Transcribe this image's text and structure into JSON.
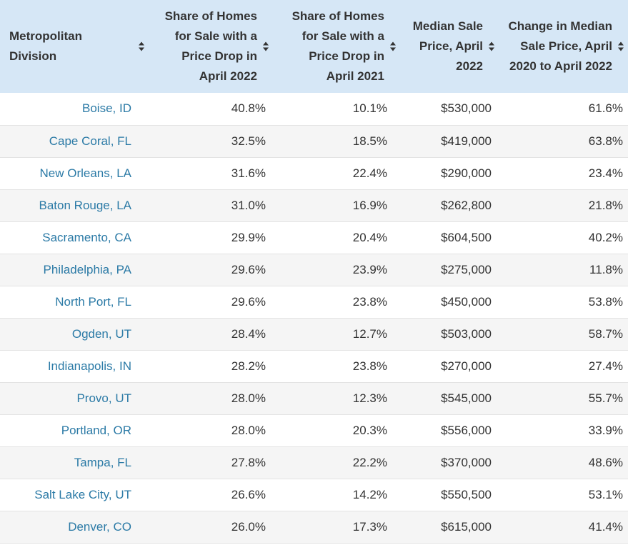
{
  "table": {
    "headers": [
      "Metropolitan Division",
      "Share of Homes for Sale with a Price Drop in April 2022",
      "Share of Homes for Sale with a Price Drop in April 2021",
      "Median Sale Price, April 2022",
      "Change in Median Sale Price, April 2020 to April 2022"
    ],
    "rows": [
      [
        "Boise, ID",
        "40.8%",
        "10.1%",
        "$530,000",
        "61.6%"
      ],
      [
        "Cape Coral, FL",
        "32.5%",
        "18.5%",
        "$419,000",
        "63.8%"
      ],
      [
        "New Orleans, LA",
        "31.6%",
        "22.4%",
        "$290,000",
        "23.4%"
      ],
      [
        "Baton Rouge, LA",
        "31.0%",
        "16.9%",
        "$262,800",
        "21.8%"
      ],
      [
        "Sacramento, CA",
        "29.9%",
        "20.4%",
        "$604,500",
        "40.2%"
      ],
      [
        "Philadelphia, PA",
        "29.6%",
        "23.9%",
        "$275,000",
        "11.8%"
      ],
      [
        "North Port, FL",
        "29.6%",
        "23.8%",
        "$450,000",
        "53.8%"
      ],
      [
        "Ogden, UT",
        "28.4%",
        "12.7%",
        "$503,000",
        "58.7%"
      ],
      [
        "Indianapolis, IN",
        "28.2%",
        "23.8%",
        "$270,000",
        "27.4%"
      ],
      [
        "Provo, UT",
        "28.0%",
        "12.3%",
        "$545,000",
        "55.7%"
      ],
      [
        "Portland, OR",
        "28.0%",
        "20.3%",
        "$556,000",
        "33.9%"
      ],
      [
        "Tampa, FL",
        "27.8%",
        "22.2%",
        "$370,000",
        "48.6%"
      ],
      [
        "Salt Lake City, UT",
        "26.6%",
        "14.2%",
        "$550,500",
        "53.1%"
      ],
      [
        "Denver, CO",
        "26.0%",
        "17.3%",
        "$615,000",
        "41.4%"
      ]
    ]
  },
  "colors": {
    "header_bg": "#d6e7f6",
    "link_text": "#2b7aa6",
    "row_alt": "#f5f5f5"
  },
  "icons": {
    "sort": "sort-icon"
  }
}
